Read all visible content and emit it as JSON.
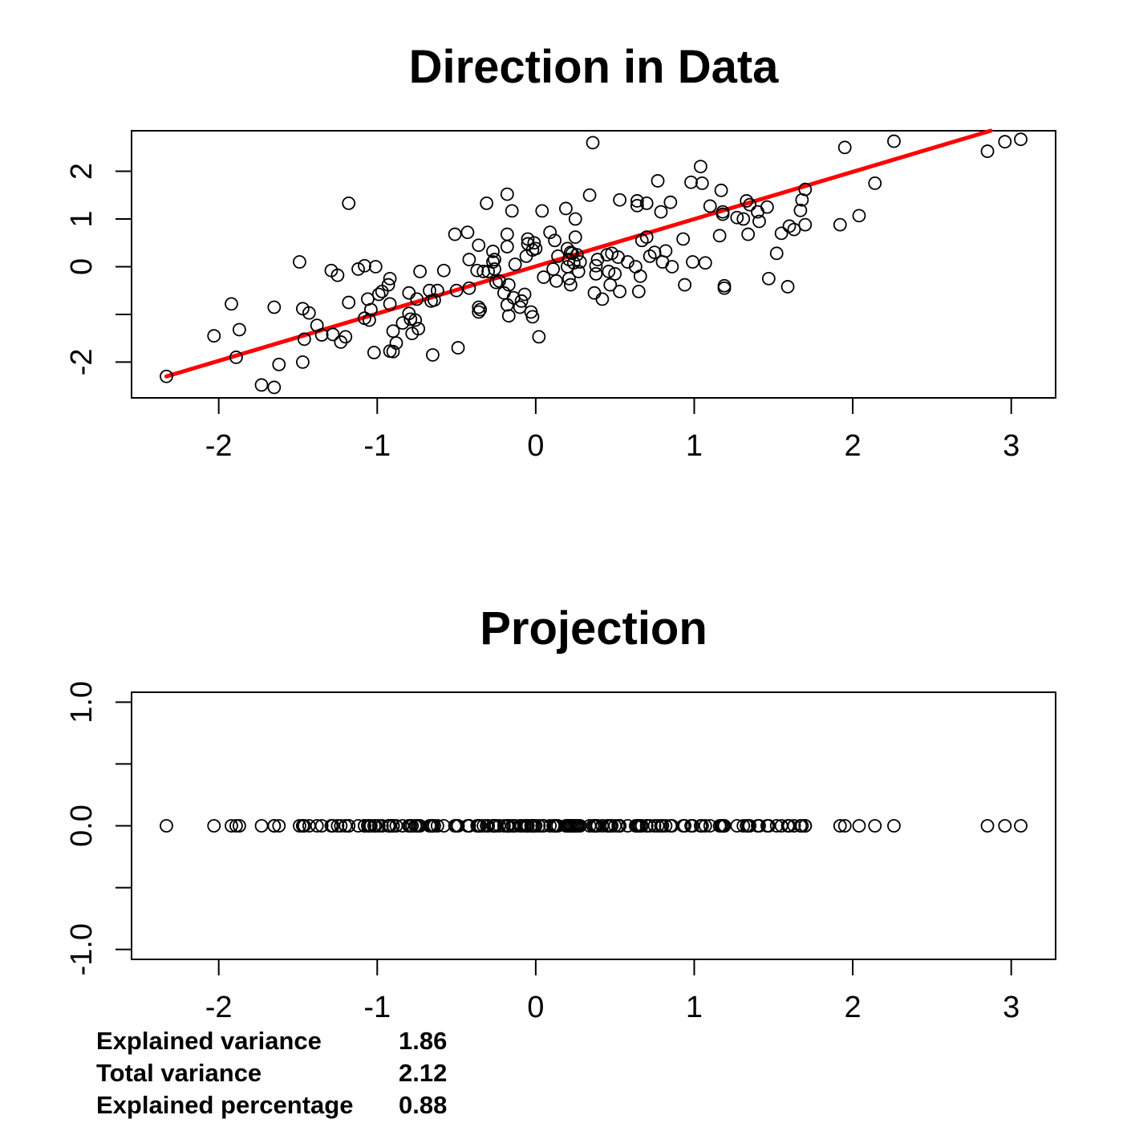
{
  "chart_data": [
    {
      "type": "scatter",
      "title": "Direction in Data",
      "xlabel": "",
      "ylabel": "",
      "xlim": [
        -2.55,
        3.28
      ],
      "ylim": [
        -2.75,
        2.85
      ],
      "xticks": [
        -2,
        -1,
        0,
        1,
        2,
        3
      ],
      "xtick_labels": [
        "-2",
        "-1",
        "0",
        "1",
        "2",
        "3"
      ],
      "yticks": [
        -2,
        0,
        2
      ],
      "ytick_labels": [
        "-2",
        "0",
        "2"
      ],
      "yticks_minor": [
        -1,
        1
      ],
      "ytick_minor_labels": [
        "",
        "1"
      ],
      "grid": false,
      "point_color": "#000000",
      "line": {
        "color": "#ff0000",
        "x": [
          -2.33,
          2.87
        ],
        "y": [
          -2.3,
          2.85
        ]
      },
      "points": [
        [
          -2.33,
          -2.3
        ],
        [
          -2.03,
          -1.45
        ],
        [
          -1.92,
          -0.78
        ],
        [
          -1.89,
          -1.9
        ],
        [
          -1.87,
          -1.32
        ],
        [
          -1.73,
          -2.48
        ],
        [
          -1.65,
          -0.85
        ],
        [
          -1.65,
          -2.53
        ],
        [
          -1.62,
          -2.05
        ],
        [
          -1.49,
          0.1
        ],
        [
          -1.47,
          -0.88
        ],
        [
          -1.47,
          -2.0
        ],
        [
          -1.46,
          -1.52
        ],
        [
          -1.43,
          -0.97
        ],
        [
          -1.38,
          -1.23
        ],
        [
          -1.35,
          -1.43
        ],
        [
          -1.29,
          -0.08
        ],
        [
          -1.28,
          -1.42
        ],
        [
          -1.25,
          -0.18
        ],
        [
          -1.23,
          -1.58
        ],
        [
          -1.2,
          -1.47
        ],
        [
          -1.18,
          1.33
        ],
        [
          -1.18,
          -0.75
        ],
        [
          -1.12,
          -0.05
        ],
        [
          -1.08,
          0.02
        ],
        [
          -1.08,
          -1.08
        ],
        [
          -1.06,
          -0.68
        ],
        [
          -1.05,
          -1.12
        ],
        [
          -1.04,
          -0.9
        ],
        [
          -1.02,
          -1.8
        ],
        [
          -1.01,
          0.0
        ],
        [
          -0.99,
          -0.58
        ],
        [
          -0.97,
          -0.52
        ],
        [
          -0.93,
          -0.38
        ],
        [
          -0.92,
          -1.77
        ],
        [
          -0.92,
          -0.25
        ],
        [
          -0.92,
          -0.78
        ],
        [
          -0.9,
          -1.78
        ],
        [
          -0.9,
          -1.35
        ],
        [
          -0.88,
          -1.6
        ],
        [
          -0.84,
          -1.18
        ],
        [
          -0.8,
          -0.55
        ],
        [
          -0.8,
          -0.98
        ],
        [
          -0.79,
          -1.1
        ],
        [
          -0.78,
          -1.4
        ],
        [
          -0.76,
          -1.12
        ],
        [
          -0.75,
          -0.68
        ],
        [
          -0.74,
          -1.3
        ],
        [
          -0.73,
          -0.1
        ],
        [
          -0.67,
          -0.5
        ],
        [
          -0.66,
          -0.72
        ],
        [
          -0.65,
          -1.85
        ],
        [
          -0.64,
          -0.7
        ],
        [
          -0.62,
          -0.5
        ],
        [
          -0.58,
          -0.08
        ],
        [
          -0.51,
          0.68
        ],
        [
          -0.5,
          -0.5
        ],
        [
          -0.49,
          -1.7
        ],
        [
          -0.43,
          0.72
        ],
        [
          -0.42,
          0.15
        ],
        [
          -0.42,
          -0.45
        ],
        [
          -0.37,
          -0.08
        ],
        [
          -0.36,
          0.45
        ],
        [
          -0.36,
          -0.85
        ],
        [
          -0.36,
          -0.95
        ],
        [
          -0.35,
          -0.9
        ],
        [
          -0.33,
          -0.1
        ],
        [
          -0.31,
          1.33
        ],
        [
          -0.3,
          -0.1
        ],
        [
          -0.27,
          0.32
        ],
        [
          -0.27,
          0.1
        ],
        [
          -0.26,
          0.15
        ],
        [
          -0.26,
          -0.05
        ],
        [
          -0.25,
          -0.33
        ],
        [
          -0.23,
          -0.3
        ],
        [
          -0.2,
          -0.55
        ],
        [
          -0.18,
          1.52
        ],
        [
          -0.18,
          0.68
        ],
        [
          -0.18,
          0.42
        ],
        [
          -0.18,
          -0.8
        ],
        [
          -0.17,
          -0.38
        ],
        [
          -0.17,
          -1.03
        ],
        [
          -0.15,
          1.17
        ],
        [
          -0.14,
          -0.65
        ],
        [
          -0.13,
          0.05
        ],
        [
          -0.1,
          -0.85
        ],
        [
          -0.09,
          -0.72
        ],
        [
          -0.07,
          -0.58
        ],
        [
          -0.06,
          0.22
        ],
        [
          -0.05,
          0.58
        ],
        [
          -0.05,
          0.48
        ],
        [
          -0.03,
          -0.95
        ],
        [
          -0.02,
          -1.05
        ],
        [
          -0.02,
          0.35
        ],
        [
          -0.01,
          0.5
        ],
        [
          0.0,
          0.38
        ],
        [
          0.02,
          -1.47
        ],
        [
          0.04,
          1.17
        ],
        [
          0.05,
          -0.22
        ],
        [
          0.09,
          0.72
        ],
        [
          0.11,
          -0.05
        ],
        [
          0.12,
          0.55
        ],
        [
          0.13,
          -0.3
        ],
        [
          0.14,
          0.22
        ],
        [
          0.19,
          1.22
        ],
        [
          0.2,
          0.38
        ],
        [
          0.2,
          0.0
        ],
        [
          0.21,
          0.15
        ],
        [
          0.21,
          -0.25
        ],
        [
          0.22,
          -0.38
        ],
        [
          0.22,
          0.3
        ],
        [
          0.23,
          0.28
        ],
        [
          0.24,
          0.08
        ],
        [
          0.25,
          1.0
        ],
        [
          0.25,
          0.62
        ],
        [
          0.26,
          0.25
        ],
        [
          0.27,
          -0.1
        ],
        [
          0.28,
          0.1
        ],
        [
          0.34,
          1.5
        ],
        [
          0.36,
          2.6
        ],
        [
          0.37,
          -0.55
        ],
        [
          0.38,
          0.02
        ],
        [
          0.38,
          -0.15
        ],
        [
          0.39,
          0.15
        ],
        [
          0.42,
          -0.68
        ],
        [
          0.45,
          0.25
        ],
        [
          0.46,
          -0.1
        ],
        [
          0.47,
          -0.38
        ],
        [
          0.48,
          0.28
        ],
        [
          0.5,
          -0.15
        ],
        [
          0.52,
          0.2
        ],
        [
          0.53,
          1.4
        ],
        [
          0.53,
          -0.52
        ],
        [
          0.58,
          0.1
        ],
        [
          0.63,
          0.0
        ],
        [
          0.64,
          1.38
        ],
        [
          0.64,
          1.28
        ],
        [
          0.65,
          -0.52
        ],
        [
          0.66,
          -0.2
        ],
        [
          0.67,
          0.55
        ],
        [
          0.7,
          1.33
        ],
        [
          0.7,
          0.62
        ],
        [
          0.72,
          0.22
        ],
        [
          0.75,
          0.3
        ],
        [
          0.77,
          1.8
        ],
        [
          0.79,
          1.15
        ],
        [
          0.8,
          0.1
        ],
        [
          0.82,
          0.33
        ],
        [
          0.85,
          1.35
        ],
        [
          0.86,
          0.0
        ],
        [
          0.93,
          0.58
        ],
        [
          0.94,
          -0.38
        ],
        [
          0.98,
          1.77
        ],
        [
          0.99,
          0.1
        ],
        [
          1.04,
          2.1
        ],
        [
          1.05,
          1.75
        ],
        [
          1.07,
          0.08
        ],
        [
          1.1,
          1.27
        ],
        [
          1.16,
          0.65
        ],
        [
          1.17,
          1.6
        ],
        [
          1.18,
          1.1
        ],
        [
          1.18,
          1.15
        ],
        [
          1.19,
          -0.45
        ],
        [
          1.19,
          -0.4
        ],
        [
          1.27,
          1.03
        ],
        [
          1.31,
          1.0
        ],
        [
          1.33,
          1.38
        ],
        [
          1.34,
          0.68
        ],
        [
          1.35,
          1.3
        ],
        [
          1.4,
          1.15
        ],
        [
          1.41,
          0.95
        ],
        [
          1.46,
          1.25
        ],
        [
          1.47,
          -0.25
        ],
        [
          1.52,
          0.28
        ],
        [
          1.55,
          0.7
        ],
        [
          1.59,
          -0.42
        ],
        [
          1.6,
          0.85
        ],
        [
          1.63,
          0.78
        ],
        [
          1.67,
          1.18
        ],
        [
          1.68,
          1.4
        ],
        [
          1.7,
          1.62
        ],
        [
          1.7,
          0.88
        ],
        [
          1.92,
          0.88
        ],
        [
          1.95,
          2.5
        ],
        [
          2.04,
          1.07
        ],
        [
          2.14,
          1.75
        ],
        [
          2.26,
          2.63
        ],
        [
          2.85,
          2.42
        ],
        [
          2.96,
          2.62
        ],
        [
          3.06,
          2.67
        ]
      ]
    },
    {
      "type": "scatter",
      "title": "Projection",
      "xlabel": "",
      "ylabel": "",
      "xlim": [
        -2.55,
        3.28
      ],
      "ylim": [
        -1.08,
        1.08
      ],
      "xticks": [
        -2,
        -1,
        0,
        1,
        2,
        3
      ],
      "xtick_labels": [
        "-2",
        "-1",
        "0",
        "1",
        "2",
        "3"
      ],
      "yticks": [
        -1.0,
        0.0,
        1.0
      ],
      "ytick_labels": [
        "-1.0",
        "0.0",
        "1.0"
      ],
      "yticks_minor": [
        -0.5,
        0.5
      ],
      "grid": false,
      "point_color": "#000000",
      "y_value": 0.0,
      "points_from_chart": 0
    }
  ],
  "stats": [
    {
      "label": "Explained variance",
      "value": "1.86"
    },
    {
      "label": "Total variance",
      "value": "2.12"
    },
    {
      "label": "Explained percentage",
      "value": "0.88"
    }
  ]
}
